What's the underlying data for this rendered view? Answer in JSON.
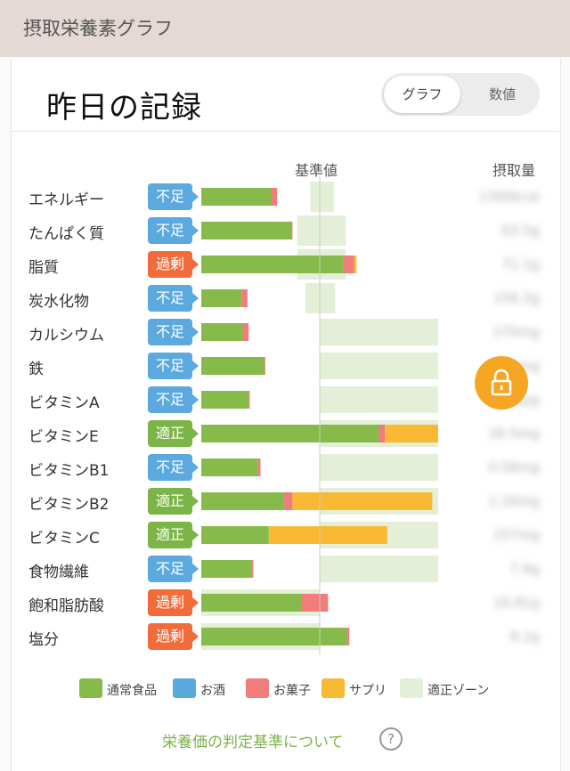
{
  "header": {
    "title": "摂取栄養素グラフ"
  },
  "section": {
    "title": "昨日の記録"
  },
  "toggle": {
    "graph_label": "グラフ",
    "value_label": "数値",
    "selected": "グラフ"
  },
  "colors": {
    "normal_food": "#86bb4b",
    "alcohol": "#5aa9de",
    "sweets": "#f27b7b",
    "supplement": "#f9b934",
    "zone": "#e3efd6",
    "badge_low": "#5ba9de",
    "badge_ok": "#7cb547",
    "badge_high": "#f36b3a"
  },
  "chart_data": {
    "type": "bar",
    "column_headers": {
      "reference": "基準値",
      "intake": "摂取量"
    },
    "series_names": [
      "通常食品",
      "お酒",
      "お菓子",
      "サプリ",
      "適正ゾーン"
    ],
    "rows": [
      {
        "name": "エネルギー",
        "status": "不足",
        "normal_food": 59,
        "alcohol": 0,
        "sweets": 5,
        "supplement": 0,
        "zone": [
          92,
          112
        ],
        "amount": "1300kcal"
      },
      {
        "name": "たんぱく質",
        "status": "不足",
        "normal_food": 76,
        "alcohol": 0,
        "sweets": 1,
        "supplement": 0,
        "zone": [
          81,
          122
        ],
        "amount": "63.5g"
      },
      {
        "name": "脂質",
        "status": "過剰",
        "normal_food": 120,
        "alcohol": 0,
        "sweets": 9,
        "supplement": 2,
        "zone": [
          81,
          122
        ],
        "amount": "72.1g"
      },
      {
        "name": "炭水化物",
        "status": "不足",
        "normal_food": 34,
        "alcohol": 0,
        "sweets": 5,
        "supplement": 0,
        "zone": [
          88,
          113
        ],
        "amount": "158.3g"
      },
      {
        "name": "カルシウム",
        "status": "不足",
        "normal_food": 35,
        "alcohol": 0,
        "sweets": 5,
        "supplement": 0,
        "zone": [
          100,
          200
        ],
        "amount": "270mg"
      },
      {
        "name": "鉄",
        "status": "不足",
        "normal_food": 53,
        "alcohol": 0,
        "sweets": 1,
        "supplement": 0,
        "zone": [
          100,
          200
        ],
        "amount": "5.5mg"
      },
      {
        "name": "ビタミンA",
        "status": "不足",
        "normal_food": 40,
        "alcohol": 0,
        "sweets": 1,
        "supplement": 0,
        "zone": [
          100,
          200
        ],
        "amount": "280μg"
      },
      {
        "name": "ビタミンE",
        "status": "適正",
        "normal_food": 150,
        "alcohol": 0,
        "sweets": 5,
        "supplement": 45,
        "zone": [
          100,
          200
        ],
        "amount": "26.5mg"
      },
      {
        "name": "ビタミンB1",
        "status": "不足",
        "normal_food": 48,
        "alcohol": 0,
        "sweets": 2,
        "supplement": 0,
        "zone": [
          100,
          200
        ],
        "amount": "0.56mg"
      },
      {
        "name": "ビタミンB2",
        "status": "適正",
        "normal_food": 70,
        "alcohol": 0,
        "sweets": 7,
        "supplement": 118,
        "zone": [
          100,
          200
        ],
        "amount": "2.34mg"
      },
      {
        "name": "ビタミンC",
        "status": "適正",
        "normal_food": 57,
        "alcohol": 0,
        "sweets": 0,
        "supplement": 100,
        "zone": [
          100,
          200
        ],
        "amount": "157mg"
      },
      {
        "name": "食物繊維",
        "status": "不足",
        "normal_food": 43,
        "alcohol": 0,
        "sweets": 1,
        "supplement": 0,
        "zone": [
          100,
          200
        ],
        "amount": "7.6g"
      },
      {
        "name": "飽和脂肪酸",
        "status": "過剰",
        "normal_food": 85,
        "alcohol": 0,
        "sweets": 22,
        "supplement": 0,
        "zone": [
          0,
          100
        ],
        "amount": "16.81g"
      },
      {
        "name": "塩分",
        "status": "過剰",
        "normal_food": 123,
        "alcohol": 0,
        "sweets": 2,
        "supplement": 0,
        "zone": [
          0,
          100
        ],
        "amount": "8.1g"
      }
    ]
  },
  "legend": [
    "通常食品",
    "お酒",
    "お菓子",
    "サプリ",
    "適正ゾーン"
  ],
  "footer": {
    "link_label": "栄養価の判定基準について",
    "help_symbol": "?"
  },
  "lock": {
    "icon": "lock-icon"
  }
}
